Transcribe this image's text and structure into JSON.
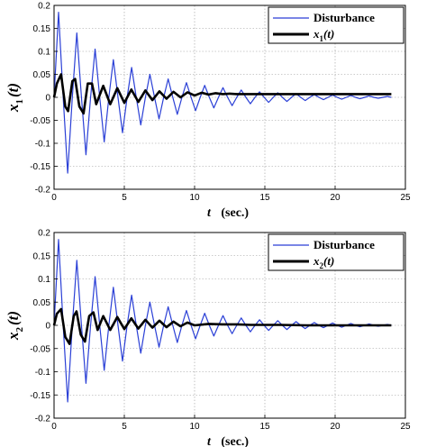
{
  "chart_data": [
    {
      "type": "line",
      "title": "",
      "xlabel": "t (sec.)",
      "xlabel_main": "t",
      "xlabel_unit": "(sec.)",
      "ylabel": "x1(t)",
      "ylabel_main": "x",
      "ylabel_sub": "1",
      "ylabel_arg": "(t)",
      "xlim": [
        0,
        25
      ],
      "ylim": [
        -0.2,
        0.2
      ],
      "xticks": [
        0,
        5,
        10,
        15,
        20,
        25
      ],
      "yticks": [
        -0.2,
        -0.15,
        -0.1,
        -0.05,
        0,
        0.05,
        0.1,
        0.15,
        0.2
      ],
      "xtick_labels": [
        "0",
        "5",
        "10",
        "15",
        "20",
        "25"
      ],
      "ytick_labels": [
        "-0.2",
        "-0.15",
        "-0.1",
        "-0.05",
        "0",
        "0.05",
        "0.1",
        "0.15",
        "0.2"
      ],
      "grid": true,
      "legend_position": "top-right",
      "series": [
        {
          "name": "Disturbance",
          "color": "#2a3fd6",
          "x": [
            0,
            0.32,
            0.65,
            0.97,
            1.3,
            1.62,
            1.95,
            2.27,
            2.6,
            2.92,
            3.25,
            3.57,
            3.9,
            4.22,
            4.55,
            4.87,
            5.2,
            5.52,
            5.85,
            6.17,
            6.5,
            6.82,
            7.15,
            7.47,
            7.8,
            8.12,
            8.45,
            8.77,
            9.1,
            9.42,
            9.75,
            10.07,
            10.4,
            10.72,
            11.05,
            11.37,
            11.7,
            12.02,
            12.35,
            12.67,
            13,
            13.32,
            13.65,
            13.97,
            14.3,
            14.62,
            14.95,
            15.27,
            15.6,
            15.92,
            16.25,
            16.57,
            16.9,
            17.22,
            17.55,
            17.87,
            18.2,
            18.52,
            18.85,
            19.17,
            19.5,
            19.82,
            20.15,
            20.47,
            20.8,
            21.12,
            21.45,
            21.77,
            22.1,
            22.42,
            22.75,
            23.07,
            23.4,
            23.72,
            24
          ],
          "values": [
            0,
            0.185,
            0,
            -0.165,
            0,
            0.14,
            0,
            -0.125,
            0,
            0.105,
            0,
            -0.097,
            0,
            0.082,
            0,
            -0.077,
            0,
            0.065,
            0,
            -0.06,
            0,
            0.05,
            0,
            -0.047,
            0,
            0.04,
            0,
            -0.037,
            0,
            0.032,
            0,
            -0.029,
            0,
            0.026,
            0,
            -0.023,
            0,
            0.021,
            0,
            -0.018,
            0,
            0.016,
            0,
            -0.014,
            0,
            0.012,
            0,
            -0.011,
            0,
            0.01,
            0,
            -0.009,
            0,
            0.008,
            0,
            -0.007,
            0,
            0.006,
            0,
            -0.005,
            0,
            0.005,
            0,
            -0.004,
            0,
            0.004,
            0,
            -0.003,
            0,
            0.003,
            0,
            -0.002,
            0,
            0.002,
            0
          ]
        },
        {
          "name": "x1(t)",
          "name_main": "x",
          "name_sub": "1",
          "name_arg": "(t)",
          "color": "#000000",
          "x": [
            0,
            0.2,
            0.5,
            0.8,
            1.0,
            1.3,
            1.5,
            1.8,
            2.1,
            2.4,
            2.7,
            3.0,
            3.5,
            4.0,
            4.5,
            5.0,
            5.5,
            6.0,
            6.5,
            7.0,
            7.5,
            8.0,
            8.5,
            9.0,
            9.5,
            10.0,
            10.5,
            11.0,
            11.5,
            12.0,
            12.5,
            13.0,
            14.0,
            15.0,
            16.0,
            18.0,
            20.0,
            22.0,
            24.0
          ],
          "values": [
            0,
            0.03,
            0.05,
            -0.02,
            -0.03,
            0.035,
            0.04,
            -0.02,
            -0.035,
            0.03,
            0.03,
            -0.015,
            0.025,
            -0.015,
            0.02,
            -0.012,
            0.017,
            -0.01,
            0.015,
            -0.006,
            0.013,
            -0.003,
            0.012,
            0,
            0.011,
            0.004,
            0.01,
            0.006,
            0.009,
            0.007,
            0.008,
            0.007,
            0.007,
            0.007,
            0.007,
            0.007,
            0.007,
            0.007,
            0.007
          ]
        }
      ]
    },
    {
      "type": "line",
      "title": "",
      "xlabel": "t (sec.)",
      "xlabel_main": "t",
      "xlabel_unit": "(sec.)",
      "ylabel": "x2(t)",
      "ylabel_main": "x",
      "ylabel_sub": "2",
      "ylabel_arg": "(t)",
      "xlim": [
        0,
        25
      ],
      "ylim": [
        -0.2,
        0.2
      ],
      "xticks": [
        0,
        5,
        10,
        15,
        20,
        25
      ],
      "yticks": [
        -0.2,
        -0.15,
        -0.1,
        -0.05,
        0,
        0.05,
        0.1,
        0.15,
        0.2
      ],
      "xtick_labels": [
        "0",
        "5",
        "10",
        "15",
        "20",
        "25"
      ],
      "ytick_labels": [
        "-0.2",
        "-0.15",
        "-0.1",
        "-0.05",
        "0",
        "0.05",
        "0.1",
        "0.15",
        "0.2"
      ],
      "grid": true,
      "legend_position": "top-right",
      "series": [
        {
          "name": "Disturbance",
          "color": "#2a3fd6",
          "x": [
            0,
            0.32,
            0.65,
            0.97,
            1.3,
            1.62,
            1.95,
            2.27,
            2.6,
            2.92,
            3.25,
            3.57,
            3.9,
            4.22,
            4.55,
            4.87,
            5.2,
            5.52,
            5.85,
            6.17,
            6.5,
            6.82,
            7.15,
            7.47,
            7.8,
            8.12,
            8.45,
            8.77,
            9.1,
            9.42,
            9.75,
            10.07,
            10.4,
            10.72,
            11.05,
            11.37,
            11.7,
            12.02,
            12.35,
            12.67,
            13,
            13.32,
            13.65,
            13.97,
            14.3,
            14.62,
            14.95,
            15.27,
            15.6,
            15.92,
            16.25,
            16.57,
            16.9,
            17.22,
            17.55,
            17.87,
            18.2,
            18.52,
            18.85,
            19.17,
            19.5,
            19.82,
            20.15,
            20.47,
            20.8,
            21.12,
            21.45,
            21.77,
            22.1,
            22.42,
            22.75,
            23.07,
            23.4,
            23.72,
            24
          ],
          "values": [
            0,
            0.185,
            0,
            -0.165,
            0,
            0.14,
            0,
            -0.125,
            0,
            0.105,
            0,
            -0.097,
            0,
            0.082,
            0,
            -0.077,
            0,
            0.065,
            0,
            -0.06,
            0,
            0.05,
            0,
            -0.047,
            0,
            0.04,
            0,
            -0.037,
            0,
            0.032,
            0,
            -0.029,
            0,
            0.026,
            0,
            -0.023,
            0,
            0.021,
            0,
            -0.018,
            0,
            0.016,
            0,
            -0.014,
            0,
            0.012,
            0,
            -0.011,
            0,
            0.01,
            0,
            -0.009,
            0,
            0.008,
            0,
            -0.007,
            0,
            0.006,
            0,
            -0.005,
            0,
            0.005,
            0,
            -0.004,
            0,
            0.004,
            0,
            -0.003,
            0,
            0.003,
            0,
            -0.002,
            0,
            0.002,
            0
          ]
        },
        {
          "name": "x2(t)",
          "name_main": "x",
          "name_sub": "2",
          "name_arg": "(t)",
          "color": "#000000",
          "x": [
            0,
            0.2,
            0.5,
            0.8,
            1.1,
            1.4,
            1.6,
            1.9,
            2.2,
            2.5,
            2.8,
            3.1,
            3.5,
            4.0,
            4.5,
            5.0,
            5.5,
            6.0,
            6.5,
            7.0,
            7.5,
            8.0,
            8.5,
            9.0,
            9.5,
            10.0,
            11.0,
            12.0,
            13.0,
            14.0,
            15.0,
            16.0,
            18.0,
            20.0,
            22.0,
            24.0
          ],
          "values": [
            0,
            0.025,
            0.035,
            -0.025,
            -0.04,
            0.02,
            0.03,
            -0.02,
            -0.035,
            0.02,
            0.028,
            -0.01,
            0.02,
            -0.01,
            0.018,
            -0.008,
            0.015,
            -0.007,
            0.012,
            -0.005,
            0.01,
            -0.004,
            0.008,
            -0.002,
            0.006,
            0,
            0.003,
            0.002,
            0.002,
            0.001,
            0.001,
            0.001,
            0,
            0,
            0,
            0
          ]
        }
      ]
    }
  ]
}
